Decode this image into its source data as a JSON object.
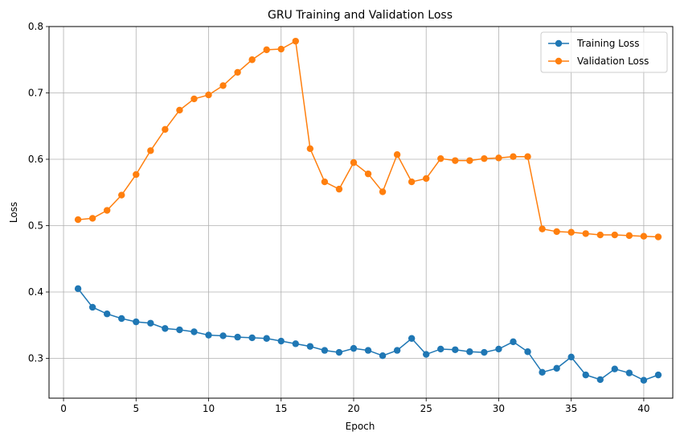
{
  "chart_data": {
    "type": "line",
    "title": "GRU Training and Validation Loss",
    "xlabel": "Epoch",
    "ylabel": "Loss",
    "xlim": [
      -1,
      42
    ],
    "ylim": [
      0.24,
      0.8
    ],
    "xticks": [
      0,
      5,
      10,
      15,
      20,
      25,
      30,
      35,
      40
    ],
    "yticks": [
      0.3,
      0.4,
      0.5,
      0.6,
      0.7,
      0.8
    ],
    "grid": true,
    "legend_position": "top-right",
    "x": [
      1,
      2,
      3,
      4,
      5,
      6,
      7,
      8,
      9,
      10,
      11,
      12,
      13,
      14,
      15,
      16,
      17,
      18,
      19,
      20,
      21,
      22,
      23,
      24,
      25,
      26,
      27,
      28,
      29,
      30,
      31,
      32,
      33,
      34,
      35,
      36,
      37,
      38,
      39,
      40,
      41
    ],
    "series": [
      {
        "name": "Training Loss",
        "color": "#1f77b4",
        "marker": "circle",
        "values": [
          0.405,
          0.377,
          0.367,
          0.36,
          0.355,
          0.353,
          0.345,
          0.343,
          0.34,
          0.335,
          0.334,
          0.332,
          0.331,
          0.33,
          0.326,
          0.322,
          0.318,
          0.312,
          0.309,
          0.315,
          0.312,
          0.304,
          0.312,
          0.33,
          0.306,
          0.314,
          0.313,
          0.31,
          0.309,
          0.314,
          0.325,
          0.31,
          0.279,
          0.285,
          0.302,
          0.275,
          0.268,
          0.284,
          0.278,
          0.267,
          0.275
        ]
      },
      {
        "name": "Validation Loss",
        "color": "#ff7f0e",
        "marker": "circle",
        "values": [
          0.509,
          0.511,
          0.523,
          0.546,
          0.577,
          0.613,
          0.645,
          0.674,
          0.691,
          0.697,
          0.711,
          0.731,
          0.75,
          0.765,
          0.766,
          0.778,
          0.616,
          0.566,
          0.555,
          0.595,
          0.578,
          0.551,
          0.607,
          0.566,
          0.571,
          0.601,
          0.598,
          0.598,
          0.601,
          0.602,
          0.604,
          0.604,
          0.495,
          0.491,
          0.49,
          0.488,
          0.486,
          0.486,
          0.485,
          0.484,
          0.483
        ]
      }
    ]
  }
}
